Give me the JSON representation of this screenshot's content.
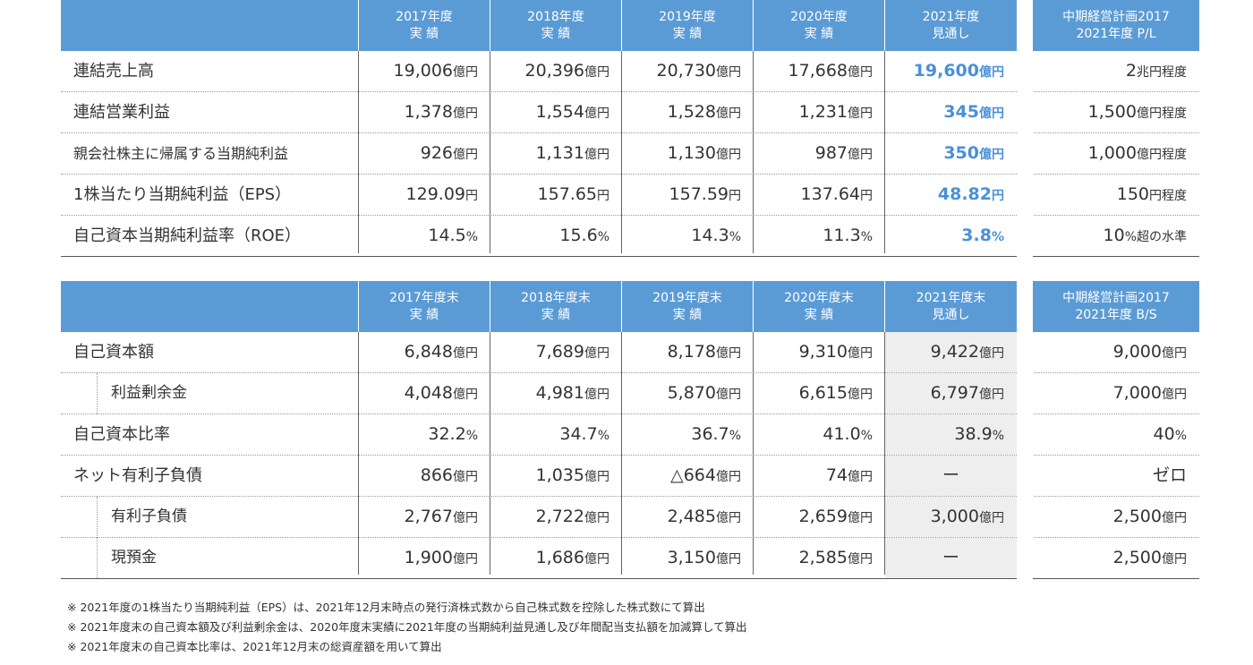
{
  "pl_table": {
    "headers": [
      {
        "line1": "2017年度",
        "line2": "実 績"
      },
      {
        "line1": "2018年度",
        "line2": "実 績"
      },
      {
        "line1": "2019年度",
        "line2": "実 績"
      },
      {
        "line1": "2020年度",
        "line2": "実 績"
      },
      {
        "line1": "2021年度",
        "line2": "見通し"
      },
      {
        "line1": "中期経営計画2017",
        "line2": "2021年度 P/L"
      }
    ],
    "rows": [
      {
        "label": "連結売上高",
        "values": [
          {
            "n": "19,006",
            "u": "億円"
          },
          {
            "n": "20,396",
            "u": "億円"
          },
          {
            "n": "20,730",
            "u": "億円"
          },
          {
            "n": "17,668",
            "u": "億円"
          },
          {
            "n": "19,600",
            "u": "億円"
          },
          {
            "n": "2",
            "u": "兆円程度"
          }
        ]
      },
      {
        "label": "連結営業利益",
        "values": [
          {
            "n": "1,378",
            "u": "億円"
          },
          {
            "n": "1,554",
            "u": "億円"
          },
          {
            "n": "1,528",
            "u": "億円"
          },
          {
            "n": "1,231",
            "u": "億円"
          },
          {
            "n": "345",
            "u": "億円"
          },
          {
            "n": "1,500",
            "u": "億円程度"
          }
        ]
      },
      {
        "label": "親会社株主に帰属する当期純利益",
        "values": [
          {
            "n": "926",
            "u": "億円"
          },
          {
            "n": "1,131",
            "u": "億円"
          },
          {
            "n": "1,130",
            "u": "億円"
          },
          {
            "n": "987",
            "u": "億円"
          },
          {
            "n": "350",
            "u": "億円"
          },
          {
            "n": "1,000",
            "u": "億円程度"
          }
        ]
      },
      {
        "label": "1株当たり当期純利益（EPS）",
        "values": [
          {
            "n": "129.09",
            "u": "円"
          },
          {
            "n": "157.65",
            "u": "円"
          },
          {
            "n": "157.59",
            "u": "円"
          },
          {
            "n": "137.64",
            "u": "円"
          },
          {
            "n": "48.82",
            "u": "円"
          },
          {
            "n": "150",
            "u": "円程度"
          }
        ]
      },
      {
        "label": "自己資本当期純利益率（ROE）",
        "values": [
          {
            "n": "14.5",
            "u": "%"
          },
          {
            "n": "15.6",
            "u": "%"
          },
          {
            "n": "14.3",
            "u": "%"
          },
          {
            "n": "11.3",
            "u": "%"
          },
          {
            "n": "3.8",
            "u": "%"
          },
          {
            "n": "10",
            "u": "%超の水準"
          }
        ]
      }
    ]
  },
  "bs_table": {
    "headers": [
      {
        "line1": "2017年度末",
        "line2": "実 績"
      },
      {
        "line1": "2018年度末",
        "line2": "実 績"
      },
      {
        "line1": "2019年度末",
        "line2": "実 績"
      },
      {
        "line1": "2020年度末",
        "line2": "実 績"
      },
      {
        "line1": "2021年度末",
        "line2": "見通し"
      },
      {
        "line1": "中期経営計画2017",
        "line2": "2021年度 B/S"
      }
    ],
    "rows": [
      {
        "label": "自己資本額",
        "values": [
          {
            "n": "6,848",
            "u": "億円"
          },
          {
            "n": "7,689",
            "u": "億円"
          },
          {
            "n": "8,178",
            "u": "億円"
          },
          {
            "n": "9,310",
            "u": "億円"
          },
          {
            "n": "9,422",
            "u": "億円"
          },
          {
            "n": "9,000",
            "u": "億円"
          }
        ]
      },
      {
        "label": "利益剰余金",
        "values": [
          {
            "n": "4,048",
            "u": "億円"
          },
          {
            "n": "4,981",
            "u": "億円"
          },
          {
            "n": "5,870",
            "u": "億円"
          },
          {
            "n": "6,615",
            "u": "億円"
          },
          {
            "n": "6,797",
            "u": "億円"
          },
          {
            "n": "7,000",
            "u": "億円"
          }
        ]
      },
      {
        "label": "自己資本比率",
        "values": [
          {
            "n": "32.2",
            "u": "%"
          },
          {
            "n": "34.7",
            "u": "%"
          },
          {
            "n": "36.7",
            "u": "%"
          },
          {
            "n": "41.0",
            "u": "%"
          },
          {
            "n": "38.9",
            "u": "%"
          },
          {
            "n": "40",
            "u": "%"
          }
        ]
      },
      {
        "label": "ネット有利子負債",
        "values": [
          {
            "n": "866",
            "u": "億円"
          },
          {
            "n": "1,035",
            "u": "億円"
          },
          {
            "n": "△664",
            "u": "億円"
          },
          {
            "n": "74",
            "u": "億円"
          },
          {
            "n": "ー",
            "u": ""
          },
          {
            "n": "ゼロ",
            "u": ""
          }
        ]
      },
      {
        "label": "有利子負債",
        "values": [
          {
            "n": "2,767",
            "u": "億円"
          },
          {
            "n": "2,722",
            "u": "億円"
          },
          {
            "n": "2,485",
            "u": "億円"
          },
          {
            "n": "2,659",
            "u": "億円"
          },
          {
            "n": "3,000",
            "u": "億円"
          },
          {
            "n": "2,500",
            "u": "億円"
          }
        ]
      },
      {
        "label": "現預金",
        "values": [
          {
            "n": "1,900",
            "u": "億円"
          },
          {
            "n": "1,686",
            "u": "億円"
          },
          {
            "n": "3,150",
            "u": "億円"
          },
          {
            "n": "2,585",
            "u": "億円"
          },
          {
            "n": "ー",
            "u": ""
          },
          {
            "n": "2,500",
            "u": "億円"
          }
        ]
      }
    ]
  },
  "notes": [
    "※ 2021年度の1株当たり当期純利益（EPS）は、2021年12月末時点の発行済株式数から自己株式数を控除した株式数にて算出",
    "※ 2021年度末の自己資本額及び利益剰余金は、2020年度末実績に2021年度の当期純利益見通し及び年間配当支払額を加減算して算出",
    "※ 2021年度末の自己資本比率は、2021年12月末の総資産額を用いて算出"
  ]
}
